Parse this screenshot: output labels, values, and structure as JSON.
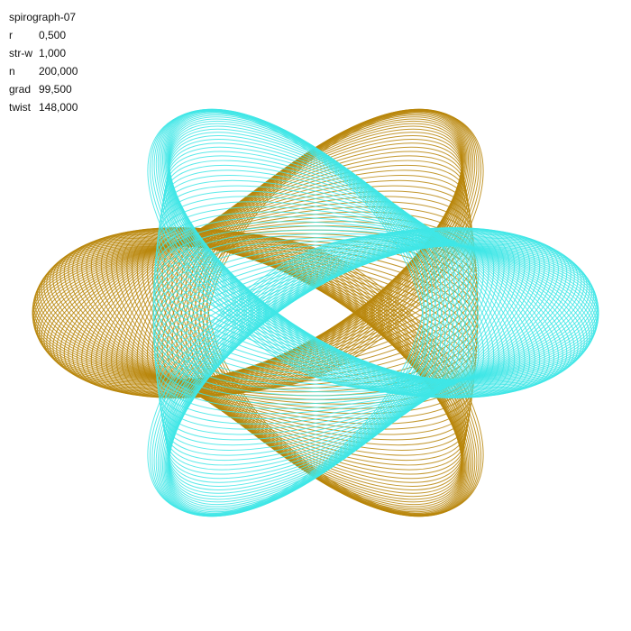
{
  "title": "spirograph-07",
  "params": [
    {
      "key": "r",
      "value": "0,500"
    },
    {
      "key": "str-w",
      "value": "1,000"
    },
    {
      "key": "n",
      "value": "200,000"
    },
    {
      "key": "grad",
      "value": "99,500"
    },
    {
      "key": "twist",
      "value": "148,000"
    }
  ],
  "colors": {
    "background": "#ffffff",
    "left_lobe": "#b8860b",
    "right_lobe": "#40e6e6",
    "text": "#111111"
  }
}
